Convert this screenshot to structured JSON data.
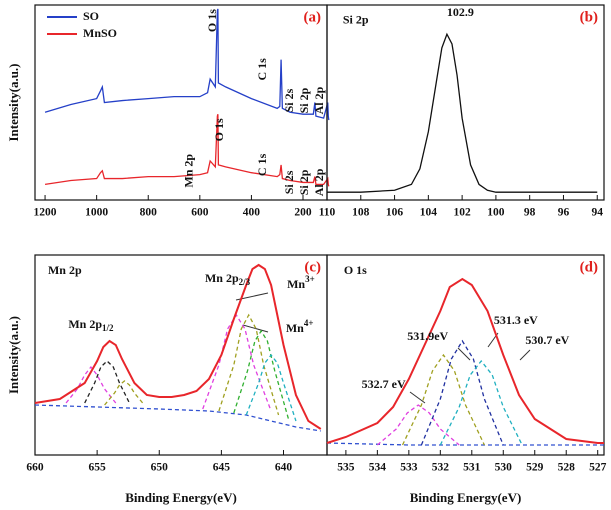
{
  "chart_data": [
    {
      "type": "line",
      "panel_label": "(a)",
      "y_label": "Intensity(a.u.)",
      "xlim": [
        1239,
        107
      ],
      "ylim": [
        0,
        100
      ],
      "xticks": [
        1200,
        1000,
        800,
        600,
        400,
        200
      ],
      "legend": "upper left",
      "annotation_rotation": -90,
      "x": [
        1200,
        1100,
        1000,
        985,
        978,
        970,
        900,
        800,
        700,
        600,
        570,
        560,
        540,
        532,
        530,
        528,
        500,
        400,
        300,
        290,
        285,
        280,
        250,
        200,
        160,
        154,
        150,
        120,
        104,
        102,
        100
      ],
      "series": [
        {
          "name": "SO",
          "color": "#2540c8",
          "values": [
            45,
            49,
            52,
            56,
            58,
            50,
            51,
            52,
            53,
            53,
            55,
            62,
            58,
            97,
            98,
            60,
            58,
            52,
            47,
            48,
            72,
            47,
            45,
            44,
            44,
            50,
            43,
            42,
            50,
            43,
            41
          ]
        },
        {
          "name": "MnSO",
          "color": "#e8262b",
          "values": [
            8,
            10,
            11,
            14,
            15,
            11,
            11,
            12,
            12,
            13,
            14,
            20,
            17,
            43,
            44,
            18,
            17,
            14,
            12,
            13,
            18,
            11,
            10,
            9,
            9,
            12,
            8,
            8,
            11,
            8,
            7
          ]
        }
      ],
      "annotations": [
        {
          "text": "O 1s",
          "x": 549,
          "y": 92
        },
        {
          "text": "C 1s",
          "x": 355,
          "y": 67
        },
        {
          "text": "Si 2s",
          "x": 251,
          "y": 51
        },
        {
          "text": "Si 2p",
          "x": 193,
          "y": 51
        },
        {
          "text": "Al 2p",
          "x": 135,
          "y": 51
        },
        {
          "text": "Mn 2p",
          "x": 640,
          "y": 15
        },
        {
          "text": "O 1s",
          "x": 522,
          "y": 36
        },
        {
          "text": "C 1s",
          "x": 355,
          "y": 18
        },
        {
          "text": "Si 2s",
          "x": 251,
          "y": 9
        },
        {
          "text": "Si 2p",
          "x": 193,
          "y": 9
        },
        {
          "text": "Al 2p",
          "x": 135,
          "y": 9
        }
      ]
    },
    {
      "type": "line",
      "panel_label": "(b)",
      "xlim": [
        110,
        93.6
      ],
      "ylim": [
        0,
        100
      ],
      "xticks": [
        110,
        108,
        106,
        104,
        102,
        100,
        98,
        96,
        94
      ],
      "x": [
        110,
        108,
        106,
        105,
        104.5,
        104,
        103.5,
        103.2,
        102.9,
        102.6,
        102.3,
        102,
        101.5,
        101,
        100.5,
        100,
        98,
        96,
        94
      ],
      "series": [
        {
          "color": "#111111",
          "values": [
            4,
            4,
            5,
            8,
            16,
            35,
            62,
            78,
            85,
            80,
            64,
            42,
            18,
            8,
            5,
            4,
            4,
            4,
            4
          ]
        }
      ],
      "annotations": [
        {
          "text": "Si 2p",
          "x": 108.3,
          "y": 92
        },
        {
          "text": "102.9",
          "x": 102.1,
          "y": 96
        }
      ]
    },
    {
      "type": "line",
      "panel_label": "(c)",
      "y_label": "Intensity(a.u.)",
      "x_label": "Binding Energy(eV)",
      "xlim": [
        660,
        636.5
      ],
      "ylim": [
        0,
        100
      ],
      "xticks": [
        660,
        655,
        650,
        645,
        640
      ],
      "x": [
        660,
        658,
        656,
        655,
        654.5,
        654,
        653.5,
        653,
        652,
        651,
        650,
        649,
        648,
        647,
        646,
        645,
        644,
        643,
        642.5,
        642,
        641.5,
        641,
        640,
        639,
        638,
        637
      ],
      "series": [
        {
          "color": "#3050d0",
          "dash": true,
          "x": [
            660,
            655,
            650,
            646,
            643,
            641,
            639,
            637
          ],
          "values": [
            25,
            24,
            23,
            22,
            20,
            17,
            14,
            12
          ]
        },
        {
          "color": "#e040e0",
          "dash": true,
          "x": [
            657.5,
            656.6,
            656,
            655.5,
            655,
            654.4,
            653.5
          ],
          "values": [
            26,
            33,
            40,
            44,
            40,
            33,
            26
          ]
        },
        {
          "color": "#222222",
          "dash": true,
          "x": [
            656,
            655.2,
            654.7,
            654.2,
            653.7,
            653.2,
            652.4
          ],
          "values": [
            26,
            36,
            44,
            47,
            44,
            36,
            26
          ]
        },
        {
          "color": "#a0a020",
          "dash": true,
          "x": [
            654.4,
            653.6,
            653.2,
            652.8,
            652.4,
            652,
            651.2
          ],
          "values": [
            25,
            31,
            35,
            37,
            35,
            31,
            25
          ]
        },
        {
          "color": "#e040e0",
          "dash": true,
          "x": [
            646.5,
            645.2,
            644.5,
            643.8,
            643.1,
            642.4,
            641
          ],
          "values": [
            23,
            45,
            63,
            70,
            63,
            45,
            22
          ]
        },
        {
          "color": "#a0a020",
          "dash": true,
          "x": [
            645.2,
            644,
            643.4,
            642.8,
            642.2,
            641.6,
            640.4
          ],
          "values": [
            22,
            45,
            63,
            70,
            63,
            45,
            20
          ]
        },
        {
          "color": "#30b030",
          "dash": true,
          "x": [
            644,
            642.9,
            642.3,
            641.8,
            641.3,
            640.7,
            639.6
          ],
          "values": [
            21,
            42,
            57,
            62,
            57,
            42,
            18
          ]
        },
        {
          "color": "#20b0c0",
          "dash": true,
          "x": [
            643,
            642,
            641.5,
            641,
            640.5,
            640,
            639
          ],
          "values": [
            20,
            36,
            46,
            50,
            46,
            36,
            17
          ]
        },
        {
          "color": "#e8262b",
          "width": 2,
          "values": [
            26,
            28,
            36,
            47,
            54,
            57,
            55,
            48,
            36,
            30,
            29,
            29,
            30,
            32,
            38,
            50,
            68,
            85,
            93,
            95,
            93,
            85,
            55,
            30,
            17,
            13
          ]
        }
      ],
      "annotations": [
        {
          "text": "Mn 2p",
          "x": 657.6,
          "y": 92
        },
        {
          "text": "Mn 2p",
          "sub": "1/2",
          "x": 655.5,
          "y": 65
        },
        {
          "text": "Mn 2p",
          "sub": "2/3",
          "x": 644.5,
          "y": 88
        },
        {
          "text": "Mn",
          "sup": "3+",
          "x": 638.6,
          "y": 85
        },
        {
          "text": "Mn",
          "sup": "4+",
          "x": 638.7,
          "y": 63
        }
      ]
    },
    {
      "type": "line",
      "panel_label": "(d)",
      "x_label": "Binding Energy(eV)",
      "xlim": [
        535.6,
        526.8
      ],
      "ylim": [
        0,
        100
      ],
      "xticks": [
        535,
        534,
        533,
        532,
        531,
        530,
        529,
        528,
        527
      ],
      "x": [
        535.6,
        535,
        534,
        533.5,
        533,
        532.5,
        532,
        531.7,
        531.3,
        531,
        530.5,
        530,
        529.5,
        529,
        528,
        527,
        526.8
      ],
      "series": [
        {
          "color": "#3050d0",
          "dash": true,
          "x": [
            535.6,
            533,
            531,
            529,
            526.8
          ],
          "values": [
            6,
            5,
            5,
            5,
            5
          ]
        },
        {
          "color": "#e040e0",
          "dash": true,
          "x": [
            534,
            533.4,
            533.05,
            532.7,
            532.35,
            532,
            531.4
          ],
          "values": [
            5,
            13,
            21,
            25,
            21,
            13,
            5
          ]
        },
        {
          "color": "#a0a020",
          "dash": true,
          "x": [
            533.2,
            532.6,
            532.25,
            531.9,
            531.55,
            531.2,
            530.6
          ],
          "values": [
            5,
            25,
            42,
            50,
            42,
            25,
            5
          ]
        },
        {
          "color": "#2030a0",
          "dash": true,
          "x": [
            532.6,
            532,
            531.65,
            531.3,
            530.95,
            530.6,
            530
          ],
          "values": [
            5,
            28,
            48,
            57,
            48,
            28,
            5
          ]
        },
        {
          "color": "#20b0c0",
          "dash": true,
          "x": [
            532,
            531.4,
            531.05,
            530.7,
            530.35,
            530,
            529.4
          ],
          "values": [
            5,
            24,
            40,
            47,
            40,
            24,
            5
          ]
        },
        {
          "color": "#e8262b",
          "width": 2,
          "values": [
            6,
            9,
            16,
            24,
            38,
            55,
            72,
            84,
            88,
            85,
            72,
            50,
            30,
            18,
            8,
            6,
            6
          ]
        }
      ],
      "annotations": [
        {
          "text": "O 1s",
          "x": 534.7,
          "y": 92
        },
        {
          "text": "531.3 eV",
          "x": 529.6,
          "y": 67
        },
        {
          "text": "531.9eV",
          "x": 532.4,
          "y": 59
        },
        {
          "text": "530.7 eV",
          "x": 528.6,
          "y": 57
        },
        {
          "text": "532.7 eV",
          "x": 533.8,
          "y": 35
        }
      ]
    }
  ]
}
